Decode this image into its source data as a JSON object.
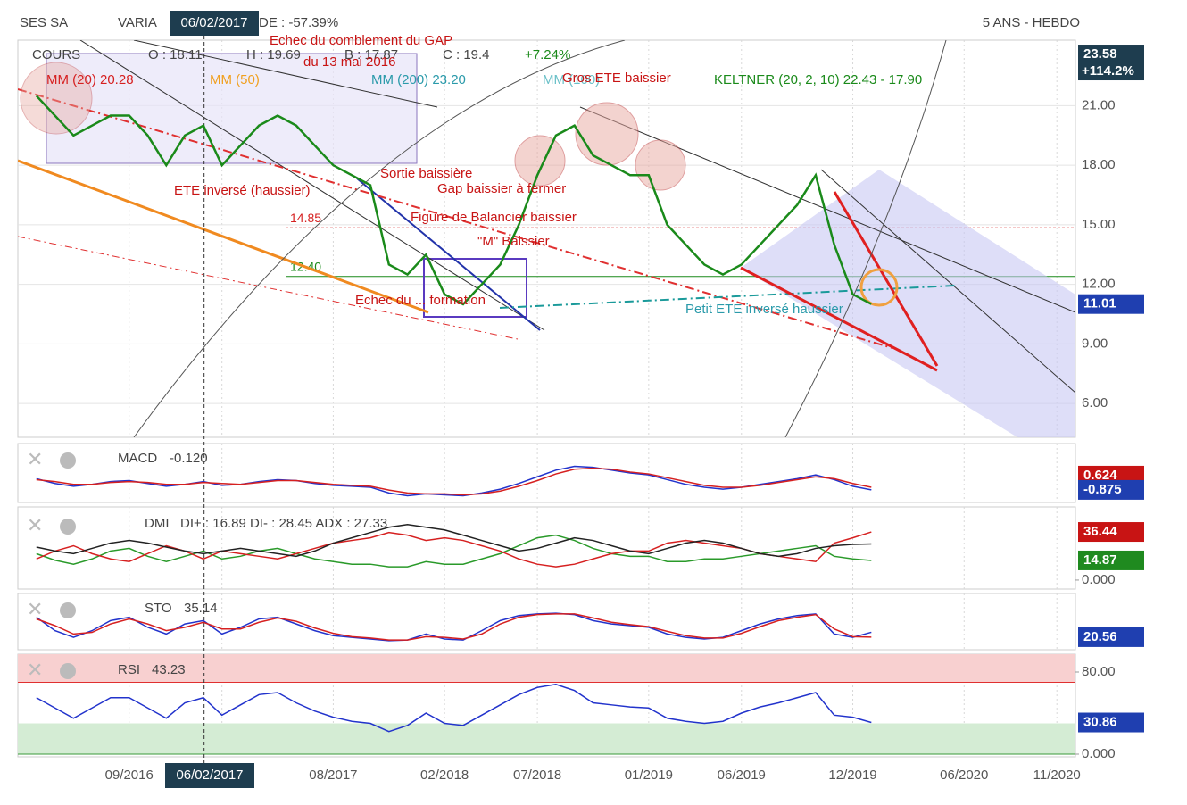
{
  "header": {
    "name": "SES SA",
    "variation": "VARIA",
    "variation_value": "DE : -57.39%",
    "cursor_date": "06/02/2017",
    "period": "5 ANS - HEBDO"
  },
  "legend": {
    "cours": "COURS",
    "open": "O : 18.11",
    "high": "H : 19.69",
    "low": "B : 17.87",
    "close": "C : 19.4",
    "change": "+7.24%",
    "mm20": "MM (20) 20.28",
    "mm50": "MM (50)",
    "mm200": "MM (200) 23.20",
    "mm100": "MM (100)",
    "keltner": "KELTNER (20, 2, 10) 22.43 - 17.90"
  },
  "annotations": {
    "gap_fail": "Echec du comblement du GAP",
    "gap_date": "du 13 mai 2016",
    "exit": "Sortie baissière",
    "ete_inv": "ETE inversé (haussier)",
    "gap_close": "Gap baissier à fermer",
    "balancier": "Figure de Balancier baissier",
    "m": "\"M\" Baissier",
    "fail_form": "Echec du ... formation",
    "gros_ete": "Gros ETE baissier",
    "petit_ete": "Petit ETE inversé haussier"
  },
  "indicators": {
    "macd": "MACD",
    "macd_value": "-0.120",
    "dmi": "DMI",
    "dmi_value": "DI+ : 16.89 DI- : 28.45 ADX : 27.33",
    "sto": "STO",
    "sto_value": "35.14",
    "rsi": "RSI",
    "rsi_value": "43.23"
  },
  "chart_data": [
    {
      "type": "line",
      "x": [
        "04/2016",
        "05/2016",
        "06/2016",
        "07/2016",
        "08/2016",
        "09/2016",
        "10/2016",
        "11/2016",
        "12/2016",
        "01/2017",
        "02/2017",
        "03/2017",
        "04/2017",
        "05/2017",
        "06/2017",
        "07/2017",
        "08/2017",
        "09/2017",
        "10/2017",
        "11/2017",
        "12/2017",
        "01/2018",
        "02/2018",
        "03/2018",
        "04/2018",
        "05/2018",
        "06/2018",
        "07/2018",
        "08/2018",
        "09/2018",
        "10/2018",
        "11/2018",
        "12/2018",
        "01/2019",
        "02/2019",
        "03/2019",
        "04/2019",
        "05/2019",
        "06/2019",
        "07/2019",
        "08/2019",
        "09/2019",
        "10/2019",
        "11/2019",
        "12/2019",
        "01/2020"
      ],
      "xlim": [
        "03/2016",
        "12/2020"
      ],
      "xticks": [
        "09/2016",
        "02/2017",
        "08/2017",
        "02/2018",
        "07/2018",
        "01/2019",
        "06/2019",
        "12/2019",
        "06/2020",
        "11/2020"
      ],
      "series": [
        {
          "color": "#1a8a1a",
          "values": [
            21.5,
            20.5,
            19.5,
            20,
            20.5,
            20.5,
            19.5,
            18,
            19.5,
            20,
            18,
            19,
            20,
            20.5,
            20,
            19,
            18,
            17.5,
            17,
            13,
            12.5,
            13.5,
            11.5,
            11,
            12,
            13,
            15,
            17.5,
            19.5,
            20,
            18.5,
            18,
            17.5,
            17.5,
            15,
            14,
            13,
            12.5,
            13,
            14,
            15,
            16,
            17.5,
            14,
            11.5,
            11.01
          ]
        }
      ],
      "ylim": [
        4.3,
        24.3
      ],
      "yticks": [
        {
          "value": 6,
          "label": "6.00"
        },
        {
          "value": 9,
          "label": "9.00"
        },
        {
          "value": 12,
          "label": "12.00"
        },
        {
          "value": 15,
          "label": "15.00"
        },
        {
          "value": 18,
          "label": "18.00"
        },
        {
          "value": 21,
          "label": "21.00"
        }
      ],
      "grid": true,
      "levels": [
        {
          "value": 14.85,
          "color": "#d62020"
        },
        {
          "value": 12.4,
          "label": "12.40",
          "color": "#1a8a1a"
        }
      ],
      "markers": [
        {
          "value": 23.58,
          "color": "#1e3d4f",
          "note": "+114.2%"
        },
        {
          "value": 11.01,
          "color": "#1f3fb0"
        }
      ]
    },
    {
      "type": "line",
      "series": [
        {
          "color": "#2233cc",
          "values": [
            0.3,
            -0.2,
            -0.5,
            -0.3,
            0,
            0.1,
            -0.2,
            -0.5,
            -0.3,
            0,
            -0.4,
            -0.3,
            0,
            0.2,
            0.1,
            -0.2,
            -0.4,
            -0.5,
            -0.6,
            -1.2,
            -1.5,
            -1.3,
            -1.4,
            -1.5,
            -1.2,
            -0.8,
            -0.2,
            0.5,
            1.2,
            1.6,
            1.5,
            1.2,
            0.9,
            0.7,
            0.2,
            -0.3,
            -0.6,
            -0.8,
            -0.6,
            -0.3,
            0,
            0.3,
            0.7,
            0.2,
            -0.5,
            -0.875
          ]
        },
        {
          "color": "#d62020",
          "values": [
            0.2,
            0,
            -0.3,
            -0.3,
            -0.1,
            0,
            -0.1,
            -0.3,
            -0.3,
            -0.1,
            -0.2,
            -0.3,
            -0.1,
            0.1,
            0.1,
            -0.1,
            -0.3,
            -0.4,
            -0.5,
            -0.9,
            -1.2,
            -1.3,
            -1.3,
            -1.4,
            -1.3,
            -1,
            -0.5,
            0.1,
            0.8,
            1.3,
            1.4,
            1.3,
            1,
            0.8,
            0.4,
            0,
            -0.4,
            -0.6,
            -0.6,
            -0.4,
            -0.1,
            0.2,
            0.5,
            0.3,
            -0.2,
            -0.6
          ]
        }
      ],
      "ylim": [
        -2.2,
        4
      ],
      "markers": [
        {
          "value": 0.624,
          "color": "#c81414"
        },
        {
          "value": -0.875,
          "color": "#1f3fb0"
        }
      ]
    },
    {
      "type": "line",
      "series": [
        {
          "color": "#2a9a2a",
          "values": [
            20,
            15,
            12,
            16,
            22,
            24,
            18,
            14,
            18,
            22,
            16,
            18,
            22,
            24,
            20,
            16,
            14,
            12,
            12,
            10,
            10,
            14,
            12,
            12,
            16,
            20,
            26,
            32,
            34,
            30,
            24,
            20,
            18,
            18,
            14,
            14,
            16,
            16,
            18,
            20,
            22,
            24,
            26,
            18,
            16,
            14.87
          ]
        },
        {
          "color": "#d62020",
          "values": [
            16,
            22,
            26,
            20,
            16,
            14,
            20,
            26,
            22,
            16,
            22,
            20,
            18,
            16,
            20,
            24,
            28,
            30,
            32,
            36,
            34,
            30,
            32,
            30,
            26,
            22,
            16,
            12,
            10,
            12,
            16,
            20,
            22,
            22,
            28,
            30,
            28,
            26,
            24,
            20,
            18,
            16,
            14,
            28,
            32,
            36.44
          ]
        },
        {
          "color": "#222222",
          "values": [
            25,
            22,
            20,
            24,
            28,
            30,
            28,
            25,
            22,
            20,
            22,
            24,
            22,
            20,
            18,
            22,
            28,
            32,
            36,
            40,
            42,
            40,
            38,
            34,
            30,
            26,
            22,
            24,
            28,
            32,
            30,
            26,
            22,
            20,
            24,
            28,
            30,
            28,
            24,
            20,
            18,
            20,
            24,
            26,
            27,
            27.33
          ]
        }
      ],
      "ylim": [
        -6.8,
        55.4
      ],
      "yticks": [
        {
          "value": 0,
          "label": "0.000"
        }
      ],
      "markers": [
        {
          "value": 36.44,
          "color": "#c81414"
        },
        {
          "value": 14.87,
          "color": "#1f8a1f"
        }
      ]
    },
    {
      "type": "line",
      "series": [
        {
          "color": "#2233cc",
          "values": [
            80,
            40,
            20,
            40,
            70,
            80,
            50,
            30,
            60,
            70,
            30,
            50,
            75,
            80,
            60,
            40,
            25,
            20,
            15,
            10,
            12,
            30,
            15,
            12,
            40,
            70,
            85,
            90,
            92,
            88,
            70,
            60,
            55,
            50,
            30,
            20,
            15,
            20,
            40,
            60,
            75,
            85,
            90,
            30,
            20,
            35.14
          ]
        },
        {
          "color": "#d62020",
          "values": [
            75,
            55,
            30,
            35,
            60,
            75,
            60,
            40,
            50,
            65,
            45,
            45,
            65,
            78,
            68,
            48,
            32,
            22,
            18,
            12,
            12,
            22,
            20,
            15,
            30,
            60,
            80,
            88,
            90,
            90,
            78,
            65,
            58,
            52,
            38,
            25,
            18,
            18,
            32,
            52,
            70,
            80,
            88,
            45,
            22,
            20.56
          ]
        }
      ],
      "ylim": [
        -17,
        151
      ],
      "markers": [
        {
          "value": 20.56,
          "color": "#1f3fb0"
        }
      ]
    },
    {
      "type": "line",
      "series": [
        {
          "color": "#2233cc",
          "values": [
            55,
            45,
            35,
            45,
            55,
            55,
            45,
            35,
            50,
            55,
            38,
            48,
            58,
            60,
            50,
            42,
            36,
            32,
            30,
            22,
            28,
            40,
            30,
            28,
            38,
            48,
            58,
            65,
            68,
            62,
            50,
            48,
            46,
            45,
            35,
            32,
            30,
            32,
            40,
            46,
            50,
            55,
            60,
            38,
            36,
            30.86
          ]
        }
      ],
      "ylim": [
        -2.6,
        97.4
      ],
      "yticks": [
        {
          "value": 80,
          "label": "80.00"
        },
        {
          "value": 0,
          "label": "0.000"
        }
      ],
      "zones": [
        {
          "from": 70,
          "to": 100,
          "color": "#f8d0d0",
          "line": "#e03030"
        },
        {
          "from": 0,
          "to": 30,
          "color": "#d4ecd4",
          "line": "#3a9a3a"
        }
      ],
      "markers": [
        {
          "value": 30.86,
          "color": "#1f3fb0"
        }
      ]
    }
  ]
}
